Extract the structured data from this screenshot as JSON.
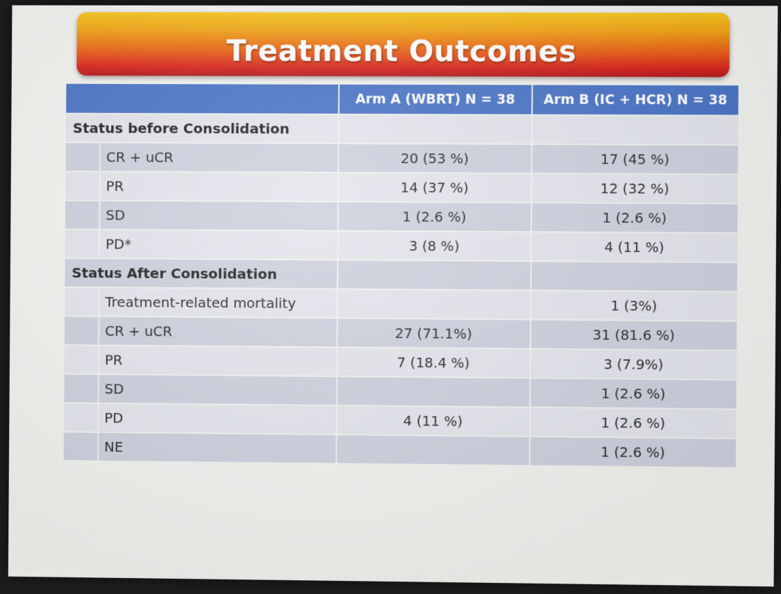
{
  "title": "Treatment Outcomes",
  "table": {
    "headers": [
      "",
      "Arm A (WBRT) N = 38",
      "Arm B (IC + HCR) N = 38"
    ],
    "sections": [
      {
        "label": "Status before Consolidation",
        "rows": [
          {
            "label": "CR + uCR",
            "arm_a": "20  (53 %)",
            "arm_b": "17 (45 %)"
          },
          {
            "label": "PR",
            "arm_a": "14 (37 %)",
            "arm_b": "12 (32 %)"
          },
          {
            "label": "SD",
            "arm_a": "1 (2.6 %)",
            "arm_b": "1 (2.6 %)"
          },
          {
            "label": "PD*",
            "arm_a": "3 (8 %)",
            "arm_b": "4 (11 %)"
          }
        ]
      },
      {
        "label": "Status After Consolidation",
        "rows": [
          {
            "label": "Treatment-related mortality",
            "arm_a": "",
            "arm_b": "1 (3%)"
          },
          {
            "label": "CR + uCR",
            "arm_a": "27 (71.1%)",
            "arm_b": "31 (81.6 %)"
          },
          {
            "label": "PR",
            "arm_a": "7 (18.4 %)",
            "arm_b": "3 (7.9%)"
          },
          {
            "label": "SD",
            "arm_a": "",
            "arm_b": "1 (2.6 %)"
          },
          {
            "label": "PD",
            "arm_a": "4 (11 %)",
            "arm_b": "1 (2.6 %)"
          },
          {
            "label": "NE",
            "arm_a": "",
            "arm_b": "1 (2.6 %)"
          }
        ]
      }
    ]
  }
}
